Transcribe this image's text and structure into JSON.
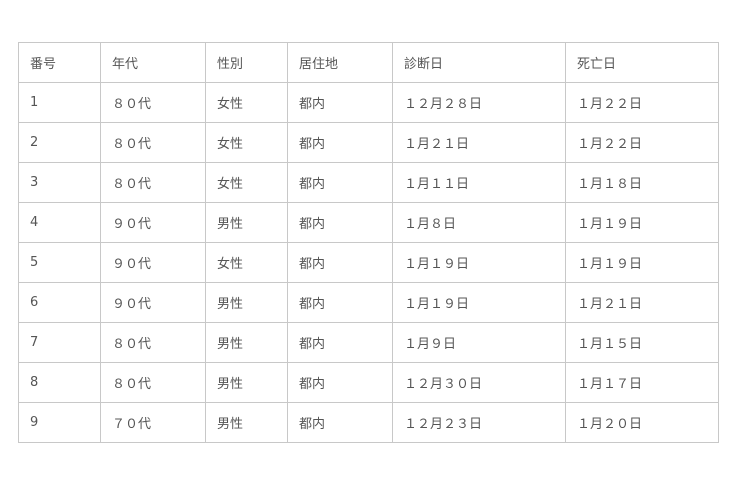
{
  "table": {
    "headers": [
      "番号",
      "年代",
      "性別",
      "居住地",
      "診断日",
      "死亡日"
    ],
    "rows": [
      [
        "1",
        "８０代",
        "女性",
        "都内",
        "１２月２８日",
        "１月２２日"
      ],
      [
        "2",
        "８０代",
        "女性",
        "都内",
        "１月２１日",
        "１月２２日"
      ],
      [
        "3",
        "８０代",
        "女性",
        "都内",
        "１月１１日",
        "１月１８日"
      ],
      [
        "4",
        "９０代",
        "男性",
        "都内",
        "１月８日",
        "１月１９日"
      ],
      [
        "5",
        "９０代",
        "女性",
        "都内",
        "１月１９日",
        "１月１９日"
      ],
      [
        "6",
        "９０代",
        "男性",
        "都内",
        "１月１９日",
        "１月２１日"
      ],
      [
        "7",
        "８０代",
        "男性",
        "都内",
        "１月９日",
        "１月１５日"
      ],
      [
        "8",
        "８０代",
        "男性",
        "都内",
        "１２月３０日",
        "１月１７日"
      ],
      [
        "9",
        "７０代",
        "男性",
        "都内",
        "１２月２３日",
        "１月２０日"
      ]
    ]
  }
}
